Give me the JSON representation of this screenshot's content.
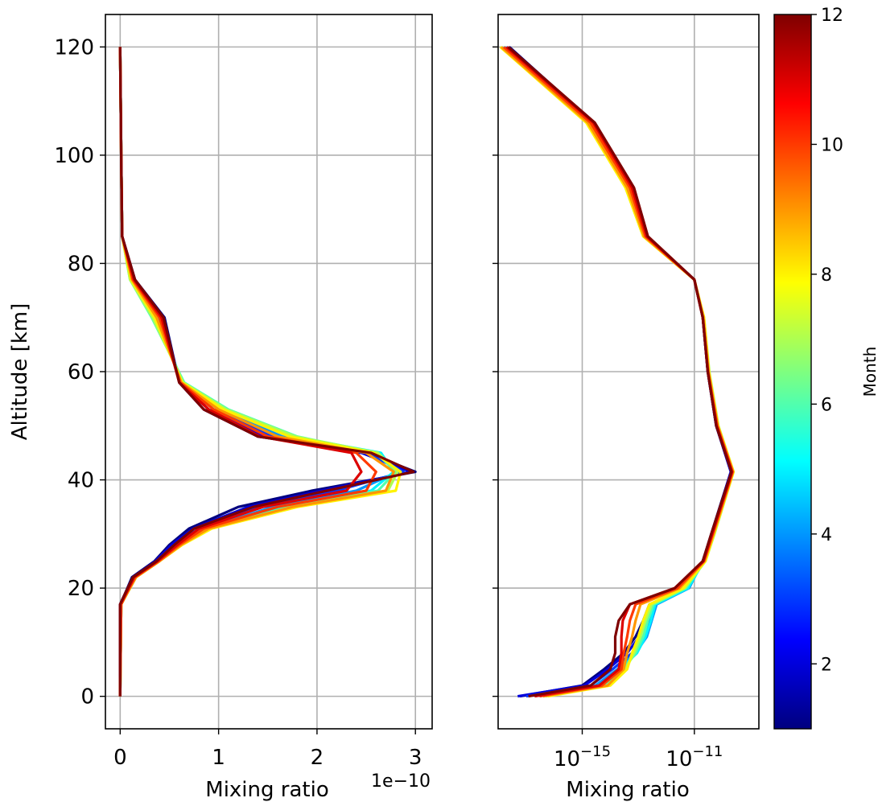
{
  "chart_data": [
    {
      "type": "line",
      "panel": "left",
      "xlabel": "Mixing ratio",
      "ylabel": "Altitude [km]",
      "x_scale": "linear",
      "x_offset_text": "1e−10",
      "x_multiplier": 1e-10,
      "xlim": [
        -0.15,
        3.17
      ],
      "ylim": [
        -6,
        126
      ],
      "xticks": [
        0,
        1,
        2,
        3
      ],
      "xtick_labels": [
        "0",
        "1",
        "2",
        "3"
      ],
      "yticks": [
        0,
        20,
        40,
        60,
        80,
        100,
        120
      ],
      "ytick_labels": [
        "0",
        "20",
        "40",
        "60",
        "80",
        "100",
        "120"
      ],
      "grid": true,
      "colormap": "jet",
      "altitude_km": [
        0,
        17,
        19,
        22,
        25,
        28,
        31,
        35,
        38,
        41.5,
        45,
        48,
        53,
        58,
        70,
        77,
        85,
        100,
        120
      ],
      "series": [
        {
          "month": 1,
          "values": [
            0,
            0,
            0.05,
            0.12,
            0.35,
            0.5,
            0.7,
            1.2,
            1.95,
            3.0,
            2.5,
            1.4,
            0.85,
            0.6,
            0.45,
            0.15,
            0.02,
            0.01,
            0
          ]
        },
        {
          "month": 2,
          "values": [
            0,
            0,
            0.05,
            0.13,
            0.36,
            0.52,
            0.74,
            1.3,
            2.05,
            2.95,
            2.45,
            1.45,
            0.9,
            0.61,
            0.43,
            0.14,
            0.02,
            0.01,
            0
          ]
        },
        {
          "month": 3,
          "values": [
            0,
            0.01,
            0.06,
            0.14,
            0.37,
            0.55,
            0.8,
            1.4,
            2.2,
            2.88,
            2.5,
            1.55,
            0.95,
            0.62,
            0.4,
            0.13,
            0.02,
            0.01,
            0
          ]
        },
        {
          "month": 4,
          "values": [
            0,
            0.01,
            0.06,
            0.15,
            0.38,
            0.58,
            0.85,
            1.55,
            2.4,
            2.82,
            2.6,
            1.65,
            1.0,
            0.63,
            0.38,
            0.12,
            0.02,
            0.01,
            0
          ]
        },
        {
          "month": 5,
          "values": [
            0,
            0.01,
            0.07,
            0.16,
            0.39,
            0.6,
            0.88,
            1.65,
            2.55,
            2.78,
            2.65,
            1.75,
            1.05,
            0.64,
            0.35,
            0.11,
            0.02,
            0.01,
            0
          ]
        },
        {
          "month": 6,
          "values": [
            0,
            0.01,
            0.07,
            0.16,
            0.4,
            0.62,
            0.9,
            1.72,
            2.62,
            2.8,
            2.6,
            1.8,
            1.1,
            0.65,
            0.32,
            0.1,
            0.02,
            0.01,
            0
          ]
        },
        {
          "month": 7,
          "values": [
            0,
            0.01,
            0.07,
            0.16,
            0.4,
            0.62,
            0.92,
            1.78,
            2.72,
            2.82,
            2.62,
            1.78,
            1.08,
            0.64,
            0.33,
            0.1,
            0.02,
            0.01,
            0
          ]
        },
        {
          "month": 8,
          "values": [
            0,
            0.01,
            0.07,
            0.16,
            0.4,
            0.63,
            0.93,
            1.8,
            2.8,
            2.85,
            2.58,
            1.72,
            1.05,
            0.63,
            0.35,
            0.11,
            0.02,
            0.01,
            0
          ]
        },
        {
          "month": 9,
          "values": [
            0,
            0.01,
            0.07,
            0.16,
            0.4,
            0.62,
            0.9,
            1.75,
            2.7,
            2.78,
            2.5,
            1.6,
            1.0,
            0.62,
            0.37,
            0.12,
            0.02,
            0.01,
            0
          ]
        },
        {
          "month": 10,
          "values": [
            0,
            0.01,
            0.06,
            0.15,
            0.39,
            0.6,
            0.85,
            1.6,
            2.5,
            2.6,
            2.4,
            1.5,
            0.95,
            0.61,
            0.4,
            0.13,
            0.02,
            0.01,
            0
          ]
        },
        {
          "month": 11,
          "values": [
            0,
            0,
            0.06,
            0.14,
            0.38,
            0.58,
            0.8,
            1.45,
            2.3,
            2.45,
            2.35,
            1.42,
            0.9,
            0.6,
            0.42,
            0.14,
            0.02,
            0.01,
            0
          ]
        },
        {
          "month": 12,
          "values": [
            0,
            0,
            0.05,
            0.13,
            0.37,
            0.55,
            0.75,
            1.35,
            2.1,
            2.98,
            2.55,
            1.4,
            0.85,
            0.6,
            0.44,
            0.15,
            0.02,
            0.01,
            0
          ]
        }
      ]
    },
    {
      "type": "line",
      "panel": "right",
      "xlabel": "Mixing ratio",
      "x_scale": "log",
      "xlim": [
        1e-18,
        2e-09
      ],
      "ylim": [
        -6,
        126
      ],
      "xticks": [
        1e-15,
        1e-11
      ],
      "xtick_labels": [
        {
          "base": "10",
          "exp": "−15"
        },
        {
          "base": "10",
          "exp": "−11"
        }
      ],
      "yticks": [
        0,
        20,
        40,
        60,
        80,
        100,
        120
      ],
      "ytick_labels_visible": false,
      "grid": true,
      "colormap": "jet",
      "altitude_km": [
        0,
        2,
        5,
        8,
        11,
        14,
        17,
        20,
        25,
        30,
        41.5,
        50,
        60,
        70,
        77,
        85,
        94,
        106,
        120
      ],
      "series": [
        {
          "month": 1,
          "values": [
            6e-18,
            1e-15,
            6e-15,
            3e-14,
            8e-14,
            1.5e-13,
            2.5e-13,
            5e-12,
            2e-11,
            4e-11,
            2e-10,
            6e-11,
            3e-11,
            2e-11,
            1e-11,
            2e-13,
            6e-14,
            2.5e-15,
            2.5e-18
          ]
        },
        {
          "month": 2,
          "values": [
            5e-18,
            1.2e-15,
            8e-15,
            4e-14,
            1.1e-13,
            2e-13,
            3.5e-13,
            5.5e-12,
            2e-11,
            4.2e-11,
            2e-10,
            6e-11,
            3e-11,
            2e-11,
            1e-11,
            2e-13,
            6e-14,
            2.5e-15,
            2.3e-18
          ]
        },
        {
          "month": 3,
          "values": [
            1e-17,
            2e-15,
            1.2e-14,
            6e-14,
            1.5e-13,
            2.5e-13,
            4e-13,
            6e-12,
            2e-11,
            4.5e-11,
            2.1e-10,
            6e-11,
            3e-11,
            2e-11,
            1e-11,
            1.9e-13,
            5.5e-14,
            2.2e-15,
            2e-18
          ]
        },
        {
          "month": 4,
          "values": [
            2e-17,
            3e-15,
            1.8e-14,
            8e-14,
            2e-13,
            3e-13,
            4.5e-13,
            6.5e-12,
            2e-11,
            4.5e-11,
            2.2e-10,
            6.2e-11,
            3e-11,
            2e-11,
            1e-11,
            1.8e-13,
            5e-14,
            2e-15,
            1.8e-18
          ]
        },
        {
          "month": 5,
          "values": [
            3e-17,
            4e-15,
            2.2e-14,
            9e-14,
            1.8e-13,
            2.8e-13,
            4e-13,
            6e-12,
            2.2e-11,
            4.8e-11,
            2.3e-10,
            6.5e-11,
            3.2e-11,
            2.1e-11,
            1e-11,
            1.7e-13,
            4.5e-14,
            1.8e-15,
            1.5e-18
          ]
        },
        {
          "month": 6,
          "values": [
            4e-17,
            6e-15,
            3e-14,
            8e-14,
            1.5e-13,
            2.2e-13,
            3.5e-13,
            5e-12,
            2.4e-11,
            5e-11,
            2.4e-10,
            7e-11,
            3.3e-11,
            2.1e-11,
            1e-11,
            1.6e-13,
            4e-14,
            1.6e-15,
            1.3e-18
          ]
        },
        {
          "month": 7,
          "values": [
            5e-17,
            8e-15,
            3.5e-14,
            7e-14,
            1.2e-13,
            1.8e-13,
            3e-13,
            4.5e-12,
            2.5e-11,
            5.2e-11,
            2.5e-10,
            7.2e-11,
            3.4e-11,
            2.2e-11,
            1e-11,
            1.5e-13,
            3.5e-14,
            1.5e-15,
            1.2e-18
          ]
        },
        {
          "month": 8,
          "values": [
            6e-17,
            1e-14,
            4e-14,
            6e-14,
            1e-13,
            1.5e-13,
            2.5e-13,
            4e-12,
            2.5e-11,
            5e-11,
            2.5e-10,
            7e-11,
            3.3e-11,
            2.2e-11,
            1e-11,
            1.5e-13,
            3.5e-14,
            1.4e-15,
            1.2e-18
          ]
        },
        {
          "month": 9,
          "values": [
            4e-17,
            8e-15,
            3e-14,
            4e-14,
            6e-14,
            8e-14,
            1.2e-13,
            3e-12,
            2.3e-11,
            4.8e-11,
            2.4e-10,
            6.8e-11,
            3.2e-11,
            2.1e-11,
            1e-11,
            1.6e-13,
            4e-14,
            1.6e-15,
            1.3e-18
          ]
        },
        {
          "month": 10,
          "values": [
            3e-17,
            5e-15,
            2.5e-14,
            3e-14,
            4e-14,
            5e-14,
            8e-14,
            2.5e-12,
            2.2e-11,
            4.5e-11,
            2.3e-10,
            6.5e-11,
            3.1e-11,
            2e-11,
            1e-11,
            1.8e-13,
            5e-14,
            2e-15,
            1.6e-18
          ]
        },
        {
          "month": 11,
          "values": [
            2e-17,
            4e-15,
            2e-14,
            2.5e-14,
            2.5e-14,
            2.8e-14,
            5e-14,
            2e-12,
            2.1e-11,
            4.3e-11,
            2.2e-10,
            6.2e-11,
            3e-11,
            2e-11,
            1e-11,
            2e-13,
            6e-14,
            2.5e-15,
            2e-18
          ]
        },
        {
          "month": 12,
          "values": [
            1.2e-17,
            2e-15,
            1e-14,
            1.5e-14,
            1.5e-14,
            2e-14,
            5e-14,
            2e-12,
            2e-11,
            4e-11,
            2.1e-10,
            6e-11,
            3e-11,
            2e-11,
            1e-11,
            2.2e-13,
            7e-14,
            2.8e-15,
            2.3e-18
          ]
        }
      ]
    }
  ],
  "colorbar": {
    "label": "Month",
    "range": [
      1,
      12
    ],
    "ticks": [
      2,
      4,
      6,
      8,
      10,
      12
    ],
    "tick_labels": [
      "2",
      "4",
      "6",
      "8",
      "10",
      "12"
    ],
    "colormap": "jet",
    "colormap_stops": [
      "#00007f",
      "#0000ff",
      "#007fff",
      "#00ffff",
      "#7fff7f",
      "#ffff00",
      "#ff7f00",
      "#ff0000",
      "#7f0000"
    ]
  }
}
